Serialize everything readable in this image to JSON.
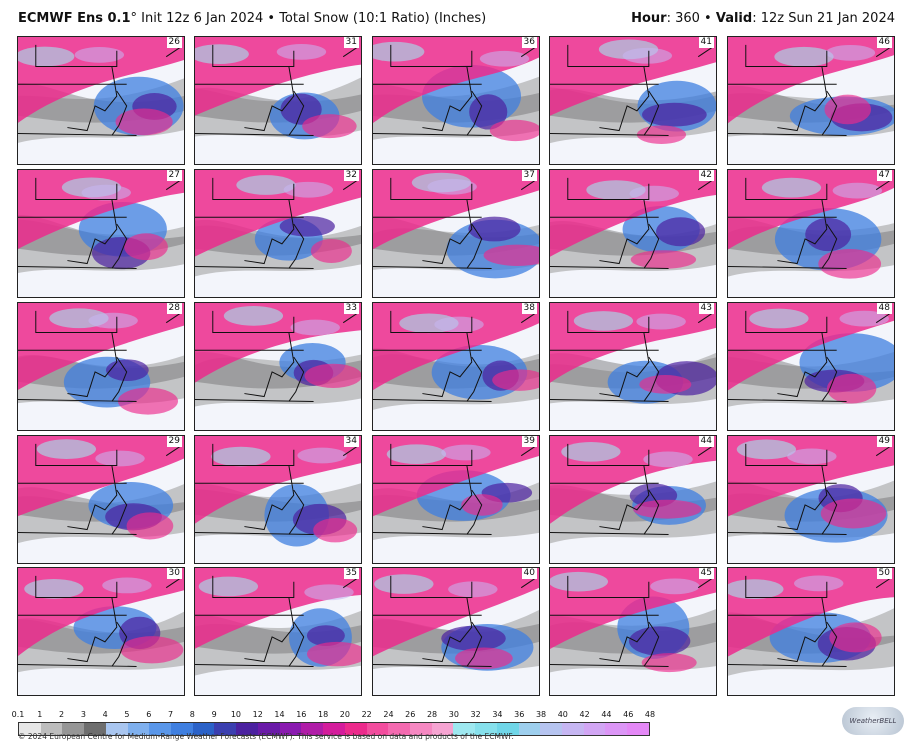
{
  "header": {
    "model": "ECMWF Ens 0.1",
    "degree": "°",
    "init": "Init 12z 6 Jan 2024",
    "bullet": "•",
    "product": "Total Snow (10:1 Ratio) (Inches)",
    "hour_label": "Hour",
    "hour_value": ": 360",
    "valid_label": "Valid",
    "valid_value": ": 12z Sun 21 Jan 2024"
  },
  "panels": [
    {
      "member": "26"
    },
    {
      "member": "31"
    },
    {
      "member": "36"
    },
    {
      "member": "41"
    },
    {
      "member": "46"
    },
    {
      "member": "27"
    },
    {
      "member": "32"
    },
    {
      "member": "37"
    },
    {
      "member": "42"
    },
    {
      "member": "47"
    },
    {
      "member": "28"
    },
    {
      "member": "33"
    },
    {
      "member": "38"
    },
    {
      "member": "43"
    },
    {
      "member": "48"
    },
    {
      "member": "29"
    },
    {
      "member": "34"
    },
    {
      "member": "39"
    },
    {
      "member": "44"
    },
    {
      "member": "49"
    },
    {
      "member": "30"
    },
    {
      "member": "35"
    },
    {
      "member": "40"
    },
    {
      "member": "45"
    },
    {
      "member": "50"
    }
  ],
  "legend": {
    "ticks": [
      "0.1",
      "1",
      "2",
      "3",
      "4",
      "5",
      "6",
      "7",
      "8",
      "9",
      "10",
      "12",
      "14",
      "16",
      "18",
      "20",
      "22",
      "24",
      "26",
      "28",
      "30",
      "32",
      "34",
      "36",
      "38",
      "40",
      "42",
      "44",
      "46",
      "48"
    ],
    "colors": [
      "#e6e6e6",
      "#bdbdbd",
      "#969696",
      "#6e6e6e",
      "#a9c6f0",
      "#7fb0ee",
      "#5a97ea",
      "#3f7fe0",
      "#2b62c8",
      "#3b3fb0",
      "#4b21a0",
      "#6a1aa8",
      "#8a1ab0",
      "#b01ca8",
      "#d41c9c",
      "#ec2a8c",
      "#f24d9e",
      "#f46ab0",
      "#f688c2",
      "#f6a4d2",
      "#9ee8f0",
      "#86e0ec",
      "#70d6e8",
      "#9ecfee",
      "#b6c4f0",
      "#c6b6f2",
      "#d2a6f4",
      "#dc96f6",
      "#e488f6"
    ]
  },
  "footer": "© 2024 European Centre for Medium-Range Weather Forecasts (ECMWF). This service is based on data and products of the ECMWF.",
  "logo_text": "WeatherBELL"
}
